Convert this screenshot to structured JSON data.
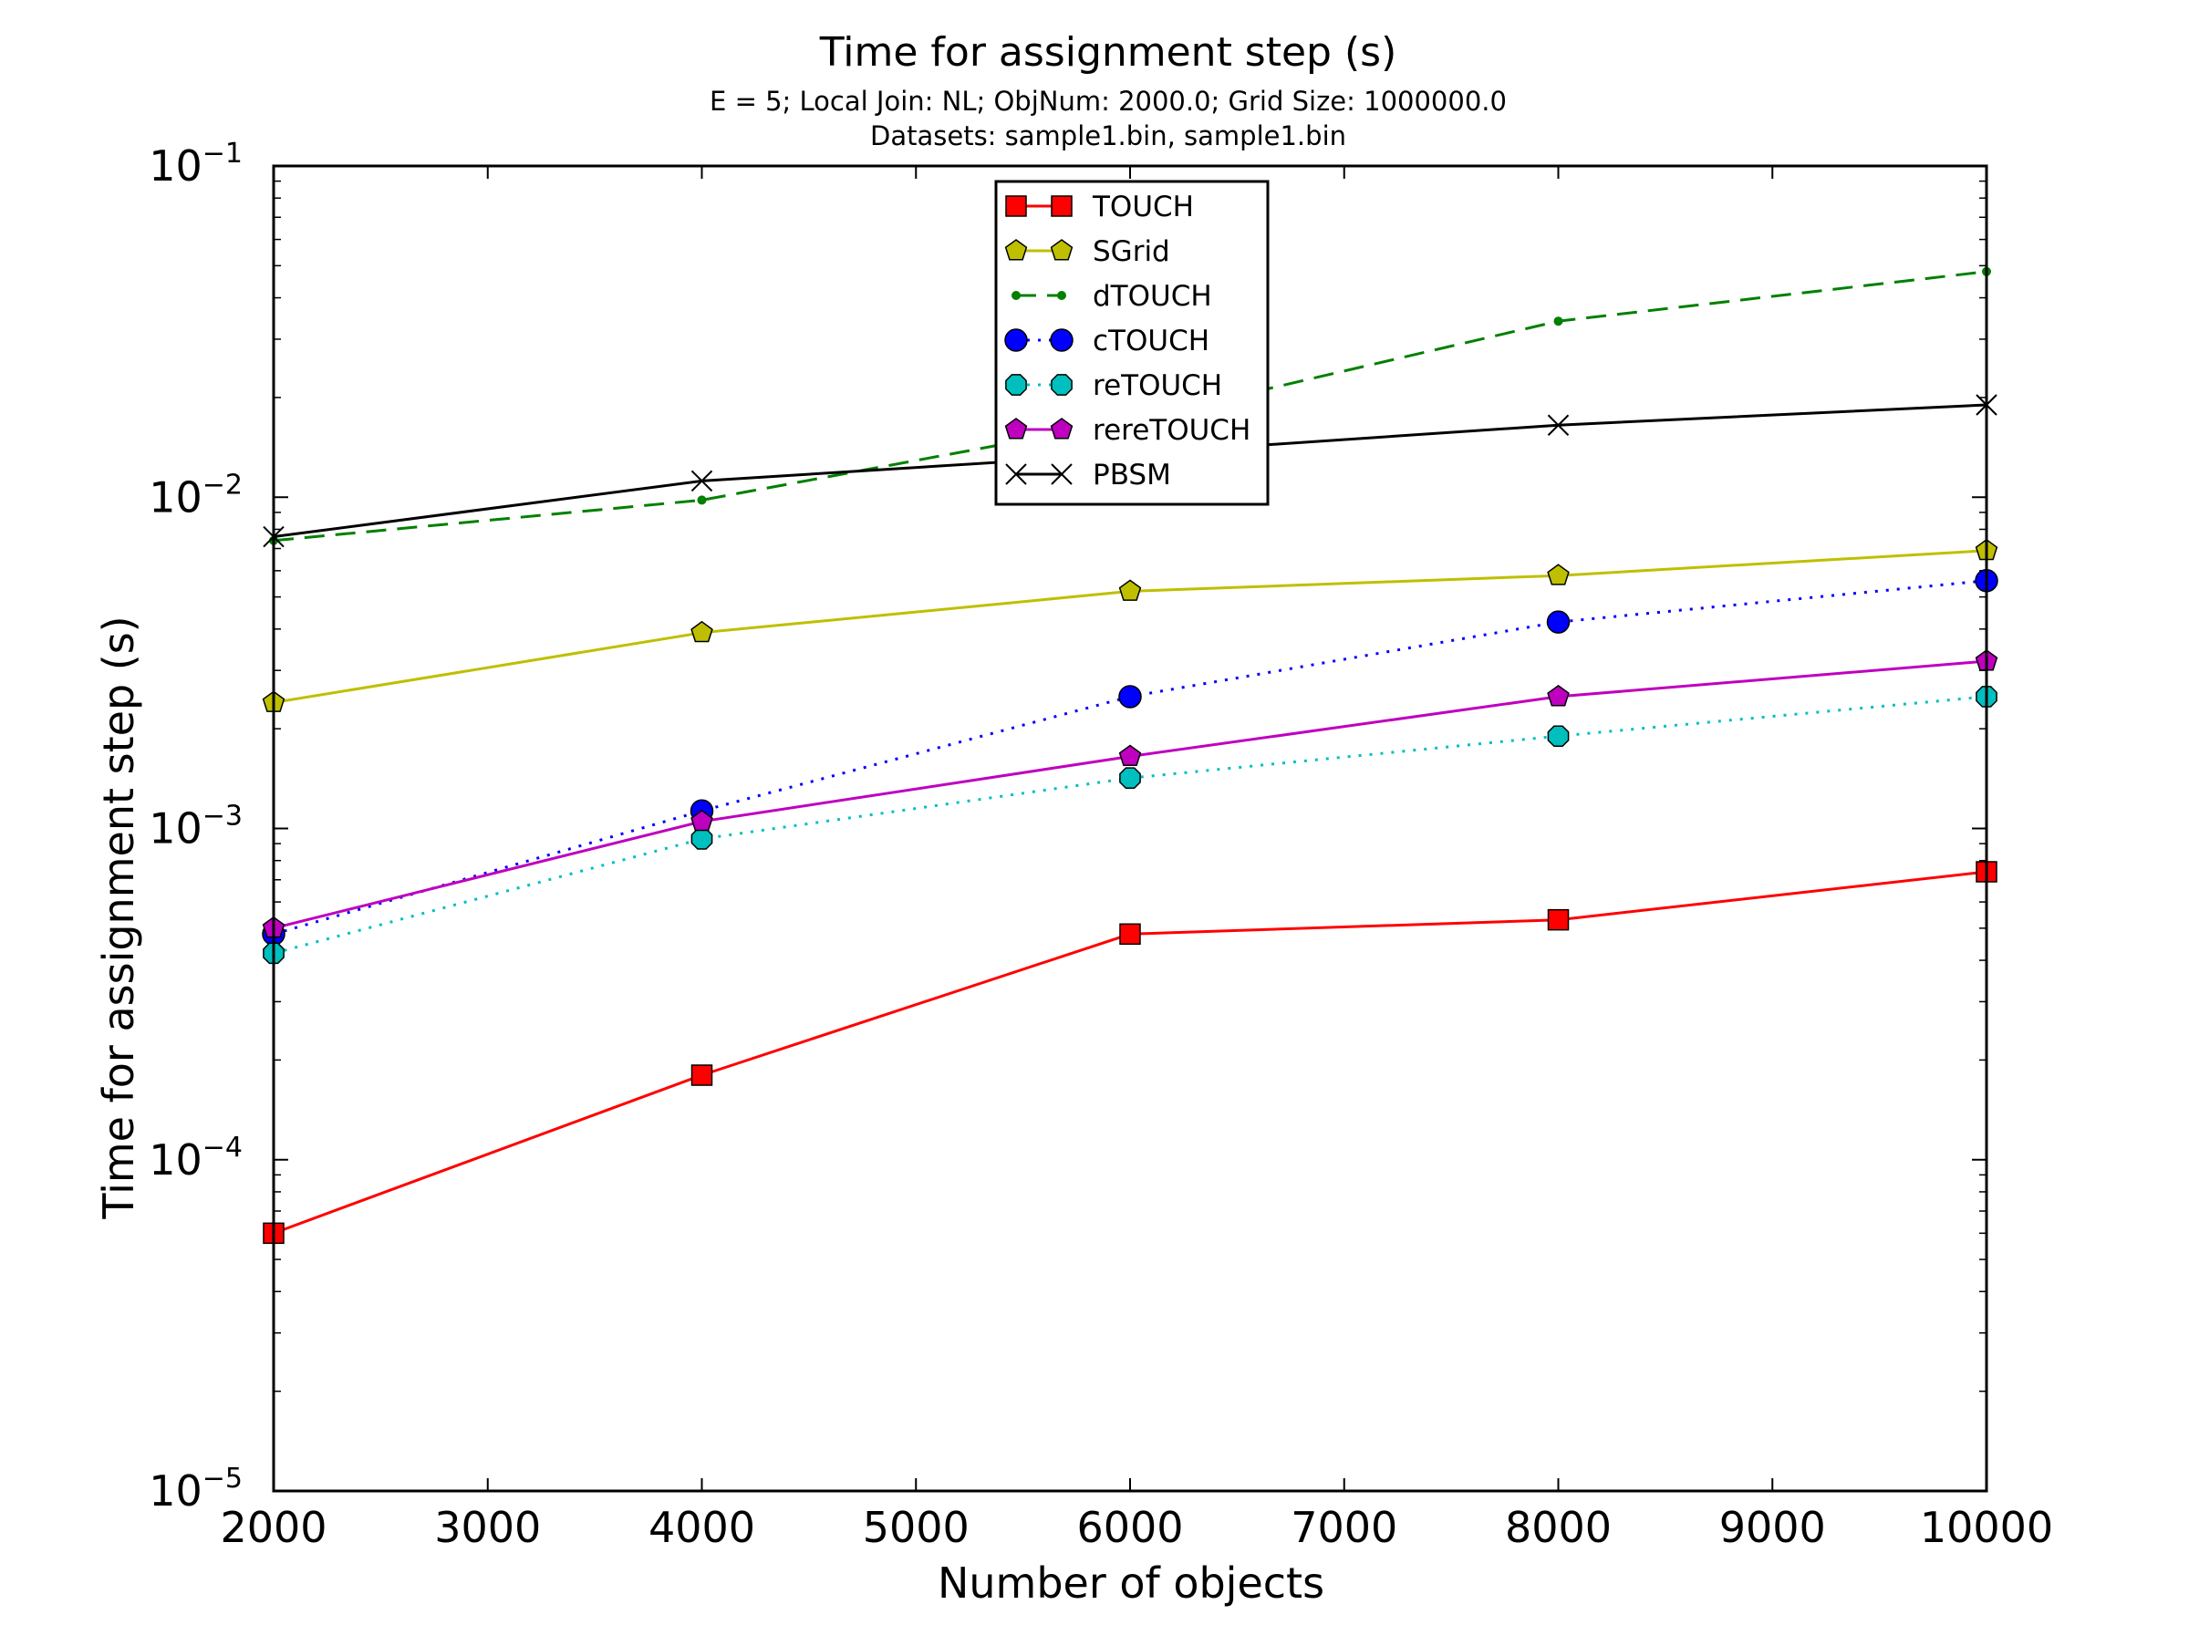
{
  "chart_data": {
    "type": "line",
    "title": "Time for assignment step (s)",
    "subtitle_lines": [
      "E = 5; Local Join: NL; ObjNum: 2000.0; Grid Size: 1000000.0",
      "Datasets: sample1.bin, sample1.bin"
    ],
    "xlabel": "Number of objects",
    "ylabel": "Time for assignment step (s)",
    "xlim": [
      2000,
      10000
    ],
    "ylim": [
      1e-05,
      0.1
    ],
    "yscale": "log",
    "grid": false,
    "legend_position": "top-center",
    "x_ticks": [
      2000,
      3000,
      4000,
      5000,
      6000,
      7000,
      8000,
      9000,
      10000
    ],
    "y_tick_labels": [
      {
        "value": 0.1,
        "base": "10",
        "exp": "−1"
      },
      {
        "value": 0.01,
        "base": "10",
        "exp": "−2"
      },
      {
        "value": 0.001,
        "base": "10",
        "exp": "−3"
      },
      {
        "value": 0.0001,
        "base": "10",
        "exp": "−4"
      },
      {
        "value": 1e-05,
        "base": "10",
        "exp": "−5"
      }
    ],
    "x": [
      2000,
      4000,
      6000,
      8000,
      10000
    ],
    "series": [
      {
        "name": "TOUCH",
        "color": "#ff0000",
        "marker": "square",
        "line": "solid",
        "values": [
          6e-05,
          0.00018,
          0.00048,
          0.00053,
          0.00074
        ]
      },
      {
        "name": "SGrid",
        "color": "#bfbf00",
        "marker": "pentagon",
        "line": "solid",
        "values": [
          0.0024,
          0.0039,
          0.0052,
          0.0058,
          0.0069
        ]
      },
      {
        "name": "dTOUCH",
        "color": "#008000",
        "marker": "dot",
        "line": "dashed",
        "values": [
          0.0074,
          0.0098,
          0.017,
          0.034,
          0.048
        ]
      },
      {
        "name": "cTOUCH",
        "color": "#0000ff",
        "marker": "circle",
        "line": "dotted",
        "values": [
          0.00048,
          0.00113,
          0.0025,
          0.0042,
          0.0056
        ]
      },
      {
        "name": "reTOUCH",
        "color": "#00bfbf",
        "marker": "octagon",
        "line": "dotted",
        "values": [
          0.00042,
          0.00093,
          0.00142,
          0.0019,
          0.0025
        ]
      },
      {
        "name": "rereTOUCH",
        "color": "#bf00bf",
        "marker": "pentagon",
        "line": "solid",
        "values": [
          0.0005,
          0.00105,
          0.00165,
          0.0025,
          0.0032
        ]
      },
      {
        "name": "PBSM",
        "color": "#000000",
        "marker": "x",
        "line": "solid",
        "values": [
          0.0076,
          0.0112,
          0.0135,
          0.0165,
          0.019
        ]
      }
    ]
  }
}
